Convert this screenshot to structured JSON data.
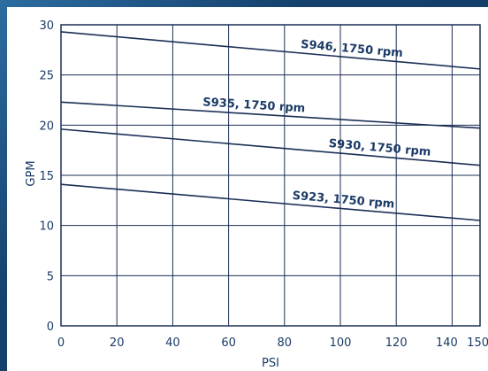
{
  "chart_data": {
    "type": "line",
    "title": "",
    "xlabel": "PSI",
    "ylabel": "GPM",
    "xlim": [
      0,
      150
    ],
    "ylim": [
      0,
      30
    ],
    "x_ticks": [
      0,
      20,
      40,
      60,
      80,
      100,
      120,
      140,
      150
    ],
    "x_tick_labels": [
      "0",
      "20",
      "40",
      "60",
      "80",
      "100",
      "120",
      "140",
      "150"
    ],
    "y_ticks": [
      0,
      5,
      10,
      15,
      20,
      25,
      30
    ],
    "y_tick_labels": [
      "0",
      "5",
      "10",
      "15",
      "20",
      "25",
      "30"
    ],
    "grid": true,
    "legend": "none",
    "line_color": "#1b2f55",
    "text_color": "#1b3a66",
    "series": [
      {
        "name": "S946, 1750 rpm",
        "x": [
          0,
          150
        ],
        "y": [
          29.3,
          25.6
        ]
      },
      {
        "name": "S935, 1750 rpm",
        "x": [
          0,
          150
        ],
        "y": [
          22.3,
          19.7
        ]
      },
      {
        "name": "S930, 1750 rpm",
        "x": [
          0,
          150
        ],
        "y": [
          19.6,
          16.0
        ]
      },
      {
        "name": "S923, 1750 rpm",
        "x": [
          0,
          150
        ],
        "y": [
          14.1,
          10.5
        ]
      }
    ]
  }
}
